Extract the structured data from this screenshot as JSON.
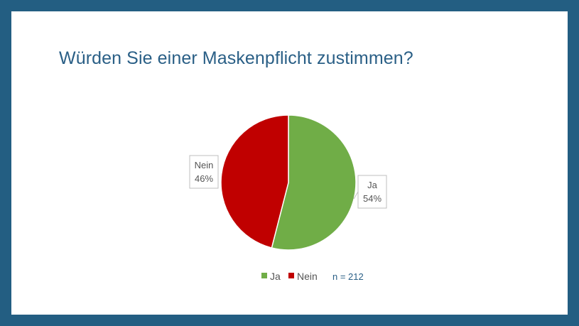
{
  "slide": {
    "title": "Würden Sie einer Maskenpflicht zustimmen?",
    "sample_note": "n = 212"
  },
  "chart_data": {
    "type": "pie",
    "start_angle_deg": 0,
    "direction": "clockwise",
    "slices": [
      {
        "label": "Ja",
        "value": 54,
        "display": "54%",
        "color": "#70ad47"
      },
      {
        "label": "Nein",
        "value": 46,
        "display": "46%",
        "color": "#c00000"
      }
    ],
    "legend": {
      "placement": "bottom",
      "entries": [
        "Ja",
        "Nein"
      ]
    },
    "data_labels": {
      "show_category": true,
      "show_percent": true
    }
  },
  "colors": {
    "frame": "#235e82",
    "title": "#2a5f86",
    "ja": "#70ad47",
    "nein": "#c00000"
  }
}
